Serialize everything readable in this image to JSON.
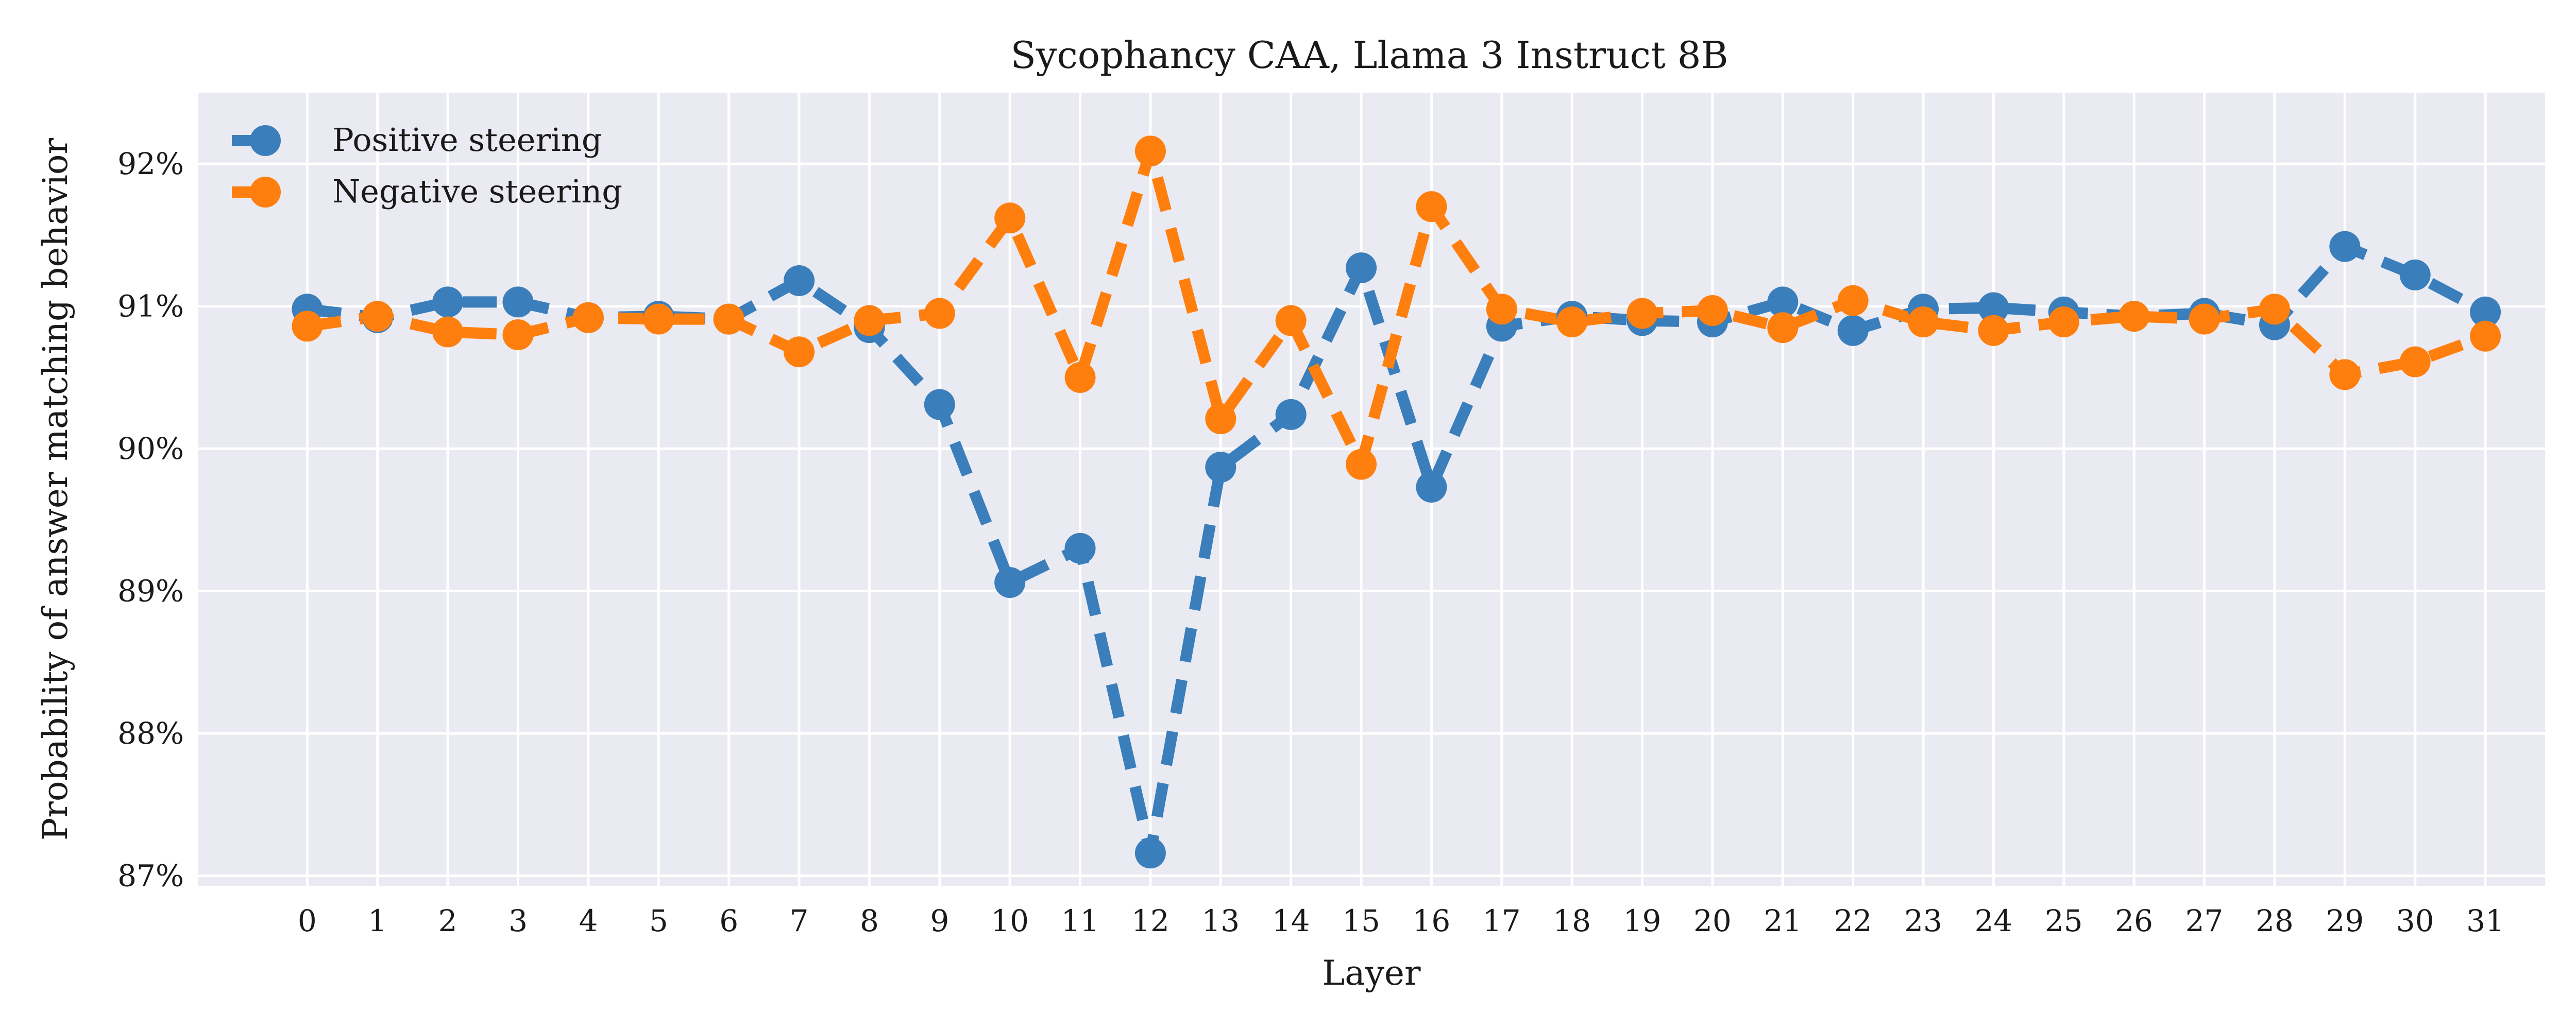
{
  "chart_data": {
    "type": "line",
    "title": "Sycophancy CAA, Llama 3 Instruct 8B",
    "xlabel": "Layer",
    "ylabel": "Probability of answer matching behavior",
    "x": [
      0,
      1,
      2,
      3,
      4,
      5,
      6,
      7,
      8,
      9,
      10,
      11,
      12,
      13,
      14,
      15,
      16,
      17,
      18,
      19,
      20,
      21,
      22,
      23,
      24,
      25,
      26,
      27,
      28,
      29,
      30,
      31
    ],
    "x_tick_labels": [
      "0",
      "1",
      "2",
      "3",
      "4",
      "5",
      "6",
      "7",
      "8",
      "9",
      "10",
      "11",
      "12",
      "13",
      "14",
      "15",
      "16",
      "17",
      "18",
      "19",
      "20",
      "21",
      "22",
      "23",
      "24",
      "25",
      "26",
      "27",
      "28",
      "29",
      "30",
      "31"
    ],
    "y_ticks": [
      87,
      88,
      89,
      90,
      91,
      92
    ],
    "y_tick_labels": [
      "87%",
      "88%",
      "89%",
      "90%",
      "91%",
      "92%"
    ],
    "ylim": [
      86.93,
      92.5
    ],
    "xlim": [
      -1.55,
      31.85
    ],
    "y_unit": "%",
    "grid": true,
    "legend_position": "upper left",
    "series": [
      {
        "name": "Positive steering",
        "color": "#3a7ebb",
        "linestyle": "dashed",
        "marker": "circle",
        "values": [
          90.98,
          90.92,
          91.03,
          91.03,
          90.92,
          90.93,
          90.91,
          91.18,
          90.85,
          90.31,
          89.06,
          89.3,
          87.16,
          89.87,
          90.24,
          91.27,
          89.73,
          90.86,
          90.93,
          90.9,
          90.89,
          91.03,
          90.83,
          90.98,
          90.99,
          90.96,
          90.93,
          90.95,
          90.87,
          91.42,
          91.22,
          90.96
        ]
      },
      {
        "name": "Negative steering",
        "color": "#ff7f0e",
        "linestyle": "dashed",
        "marker": "circle",
        "values": [
          90.86,
          90.93,
          90.82,
          90.8,
          90.92,
          90.91,
          90.91,
          90.68,
          90.9,
          90.95,
          91.62,
          90.5,
          92.09,
          90.21,
          90.9,
          89.89,
          91.7,
          90.98,
          90.89,
          90.95,
          90.97,
          90.85,
          91.04,
          90.89,
          90.83,
          90.89,
          90.93,
          90.91,
          90.98,
          90.52,
          90.61,
          90.79
        ]
      }
    ]
  }
}
